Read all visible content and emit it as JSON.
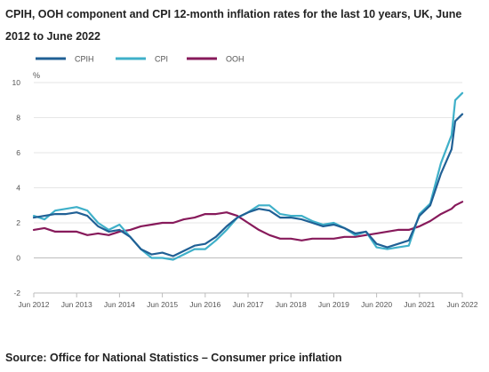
{
  "title": "CPIH, OOH component and CPI 12-month inflation rates for the last 10 years, UK, June 2012 to June 2022",
  "source": "Source: Office for National Statistics – Consumer price inflation",
  "chart_data": {
    "type": "line",
    "ylabel": "%",
    "ylim": [
      -2,
      10
    ],
    "yticks": [
      -2,
      0,
      2,
      4,
      6,
      8,
      10
    ],
    "xlim": [
      "2012-06",
      "2022-06"
    ],
    "xticks": [
      "Jun 2012",
      "Jun 2013",
      "Jun 2014",
      "Jun 2015",
      "Jun 2016",
      "Jun 2017",
      "Jun 2018",
      "Jun 2019",
      "Jun 2020",
      "Jun 2021",
      "Jun 2022"
    ],
    "legend_position": "top-left",
    "series": [
      {
        "name": "CPIH",
        "color": "#206095",
        "points": [
          [
            "2012-06",
            2.3
          ],
          [
            "2012-09",
            2.4
          ],
          [
            "2012-12",
            2.5
          ],
          [
            "2013-03",
            2.5
          ],
          [
            "2013-06",
            2.6
          ],
          [
            "2013-09",
            2.4
          ],
          [
            "2013-12",
            1.8
          ],
          [
            "2014-03",
            1.5
          ],
          [
            "2014-06",
            1.6
          ],
          [
            "2014-09",
            1.2
          ],
          [
            "2014-12",
            0.5
          ],
          [
            "2015-03",
            0.2
          ],
          [
            "2015-06",
            0.3
          ],
          [
            "2015-09",
            0.1
          ],
          [
            "2015-12",
            0.4
          ],
          [
            "2016-03",
            0.7
          ],
          [
            "2016-06",
            0.8
          ],
          [
            "2016-09",
            1.2
          ],
          [
            "2016-12",
            1.8
          ],
          [
            "2017-03",
            2.3
          ],
          [
            "2017-06",
            2.6
          ],
          [
            "2017-09",
            2.8
          ],
          [
            "2017-12",
            2.7
          ],
          [
            "2018-03",
            2.3
          ],
          [
            "2018-06",
            2.3
          ],
          [
            "2018-09",
            2.2
          ],
          [
            "2018-12",
            2.0
          ],
          [
            "2019-03",
            1.8
          ],
          [
            "2019-06",
            1.9
          ],
          [
            "2019-09",
            1.7
          ],
          [
            "2019-12",
            1.4
          ],
          [
            "2020-03",
            1.5
          ],
          [
            "2020-06",
            0.8
          ],
          [
            "2020-09",
            0.6
          ],
          [
            "2020-12",
            0.8
          ],
          [
            "2021-03",
            1.0
          ],
          [
            "2021-06",
            2.4
          ],
          [
            "2021-09",
            3.0
          ],
          [
            "2021-12",
            4.8
          ],
          [
            "2022-03",
            6.2
          ],
          [
            "2022-04",
            7.8
          ],
          [
            "2022-06",
            8.2
          ]
        ]
      },
      {
        "name": "CPI",
        "color": "#3fb0c9",
        "points": [
          [
            "2012-06",
            2.4
          ],
          [
            "2012-09",
            2.2
          ],
          [
            "2012-12",
            2.7
          ],
          [
            "2013-03",
            2.8
          ],
          [
            "2013-06",
            2.9
          ],
          [
            "2013-09",
            2.7
          ],
          [
            "2013-12",
            2.0
          ],
          [
            "2014-03",
            1.6
          ],
          [
            "2014-06",
            1.9
          ],
          [
            "2014-09",
            1.2
          ],
          [
            "2014-12",
            0.5
          ],
          [
            "2015-03",
            0.0
          ],
          [
            "2015-06",
            0.0
          ],
          [
            "2015-09",
            -0.1
          ],
          [
            "2015-12",
            0.2
          ],
          [
            "2016-03",
            0.5
          ],
          [
            "2016-06",
            0.5
          ],
          [
            "2016-09",
            1.0
          ],
          [
            "2016-12",
            1.6
          ],
          [
            "2017-03",
            2.3
          ],
          [
            "2017-06",
            2.6
          ],
          [
            "2017-09",
            3.0
          ],
          [
            "2017-12",
            3.0
          ],
          [
            "2018-03",
            2.5
          ],
          [
            "2018-06",
            2.4
          ],
          [
            "2018-09",
            2.4
          ],
          [
            "2018-12",
            2.1
          ],
          [
            "2019-03",
            1.9
          ],
          [
            "2019-06",
            2.0
          ],
          [
            "2019-09",
            1.7
          ],
          [
            "2019-12",
            1.3
          ],
          [
            "2020-03",
            1.5
          ],
          [
            "2020-06",
            0.6
          ],
          [
            "2020-09",
            0.5
          ],
          [
            "2020-12",
            0.6
          ],
          [
            "2021-03",
            0.7
          ],
          [
            "2021-06",
            2.5
          ],
          [
            "2021-09",
            3.1
          ],
          [
            "2021-12",
            5.4
          ],
          [
            "2022-03",
            7.0
          ],
          [
            "2022-04",
            9.0
          ],
          [
            "2022-06",
            9.4
          ]
        ]
      },
      {
        "name": "OOH",
        "color": "#871a5b",
        "points": [
          [
            "2012-06",
            1.6
          ],
          [
            "2012-09",
            1.7
          ],
          [
            "2012-12",
            1.5
          ],
          [
            "2013-03",
            1.5
          ],
          [
            "2013-06",
            1.5
          ],
          [
            "2013-09",
            1.3
          ],
          [
            "2013-12",
            1.4
          ],
          [
            "2014-03",
            1.3
          ],
          [
            "2014-06",
            1.5
          ],
          [
            "2014-09",
            1.6
          ],
          [
            "2014-12",
            1.8
          ],
          [
            "2015-03",
            1.9
          ],
          [
            "2015-06",
            2.0
          ],
          [
            "2015-09",
            2.0
          ],
          [
            "2015-12",
            2.2
          ],
          [
            "2016-03",
            2.3
          ],
          [
            "2016-06",
            2.5
          ],
          [
            "2016-09",
            2.5
          ],
          [
            "2016-12",
            2.6
          ],
          [
            "2017-03",
            2.4
          ],
          [
            "2017-06",
            2.0
          ],
          [
            "2017-09",
            1.6
          ],
          [
            "2017-12",
            1.3
          ],
          [
            "2018-03",
            1.1
          ],
          [
            "2018-06",
            1.1
          ],
          [
            "2018-09",
            1.0
          ],
          [
            "2018-12",
            1.1
          ],
          [
            "2019-03",
            1.1
          ],
          [
            "2019-06",
            1.1
          ],
          [
            "2019-09",
            1.2
          ],
          [
            "2019-12",
            1.2
          ],
          [
            "2020-03",
            1.3
          ],
          [
            "2020-06",
            1.4
          ],
          [
            "2020-09",
            1.5
          ],
          [
            "2020-12",
            1.6
          ],
          [
            "2021-03",
            1.6
          ],
          [
            "2021-06",
            1.8
          ],
          [
            "2021-09",
            2.1
          ],
          [
            "2021-12",
            2.5
          ],
          [
            "2022-03",
            2.8
          ],
          [
            "2022-04",
            3.0
          ],
          [
            "2022-06",
            3.2
          ]
        ]
      }
    ]
  }
}
